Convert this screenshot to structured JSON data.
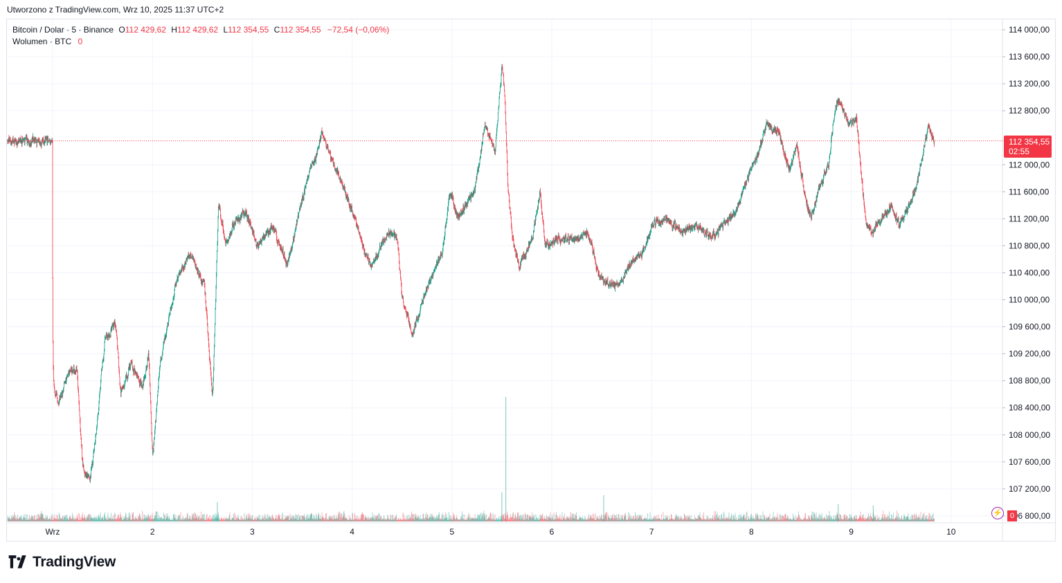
{
  "header": {
    "caption": "Utworzono z TradingView.com, Wrz 10, 2025 11:37 UTC+2"
  },
  "legend": {
    "symbol": "Bitcoin / Dolar · 5 · Binance",
    "open_key": "O",
    "open": "112 429,62",
    "high_key": "H",
    "high": "112 429,62",
    "low_key": "L",
    "low": "112 354,55",
    "close_key": "C",
    "close": "112 354,55",
    "change": "−72,54 (−0,06%)",
    "volume_label": "Wolumen · BTC",
    "volume_value": "0"
  },
  "price_label": {
    "price": "112 354,55",
    "countdown": "02:55"
  },
  "volume_badge": "0",
  "brand": {
    "name": "TradingView"
  },
  "colors": {
    "up": "#089981",
    "down": "#f23645",
    "grid": "#f0f3fa",
    "text": "#131722",
    "last_price_line": "#f23645"
  },
  "icons": {
    "alert": "lightning-icon",
    "logo": "tradingview-logo-icon"
  },
  "chart_data": {
    "type": "candlestick",
    "title": "Bitcoin / Dolar · 5 · Binance",
    "y_ticks": [
      "114 000,00",
      "113 600,00",
      "113 200,00",
      "112 800,00",
      "112 000,00",
      "111 600,00",
      "111 200,00",
      "110 800,00",
      "110 400,00",
      "110 000,00",
      "109 600,00",
      "109 200,00",
      "108 800,00",
      "108 400,00",
      "108 000,00",
      "107 600,00",
      "107 200,00",
      "106 800,00"
    ],
    "y_tick_values": [
      114000,
      113600,
      113200,
      112800,
      112000,
      111600,
      111200,
      110800,
      110400,
      110000,
      109600,
      109200,
      108800,
      108400,
      108000,
      107600,
      107200,
      106800
    ],
    "x_ticks": [
      "Wrz",
      "2",
      "3",
      "4",
      "5",
      "6",
      "7",
      "8",
      "9",
      "10"
    ],
    "ylim": [
      106800,
      114000
    ],
    "last_price": 112354.55,
    "grid": true,
    "price_path": [
      [
        0,
        108700
      ],
      [
        0.06,
        108450
      ],
      [
        0.15,
        108900
      ],
      [
        0.24,
        109000
      ],
      [
        0.3,
        107500
      ],
      [
        0.37,
        107300
      ],
      [
        0.43,
        108000
      ],
      [
        0.52,
        109400
      ],
      [
        0.63,
        109650
      ],
      [
        0.68,
        108600
      ],
      [
        0.78,
        109050
      ],
      [
        0.9,
        108700
      ],
      [
        0.96,
        109200
      ],
      [
        1.0,
        107600
      ],
      [
        1.07,
        109000
      ],
      [
        1.16,
        109700
      ],
      [
        1.24,
        110300
      ],
      [
        1.38,
        110700
      ],
      [
        1.52,
        110200
      ],
      [
        1.6,
        108500
      ],
      [
        1.66,
        111500
      ],
      [
        1.73,
        110800
      ],
      [
        1.8,
        111100
      ],
      [
        1.93,
        111300
      ],
      [
        2.05,
        110800
      ],
      [
        2.2,
        111100
      ],
      [
        2.35,
        110500
      ],
      [
        2.45,
        111200
      ],
      [
        2.55,
        111800
      ],
      [
        2.65,
        112200
      ],
      [
        2.7,
        112500
      ],
      [
        2.76,
        112200
      ],
      [
        2.9,
        111700
      ],
      [
        3.03,
        111200
      ],
      [
        3.12,
        110700
      ],
      [
        3.2,
        110500
      ],
      [
        3.35,
        111000
      ],
      [
        3.45,
        110900
      ],
      [
        3.5,
        110000
      ],
      [
        3.6,
        109500
      ],
      [
        3.75,
        110200
      ],
      [
        3.9,
        110700
      ],
      [
        3.98,
        111600
      ],
      [
        4.05,
        111200
      ],
      [
        4.22,
        111600
      ],
      [
        4.33,
        112600
      ],
      [
        4.43,
        112200
      ],
      [
        4.5,
        113500
      ],
      [
        4.53,
        112900
      ],
      [
        4.56,
        111600
      ],
      [
        4.6,
        111000
      ],
      [
        4.67,
        110500
      ],
      [
        4.8,
        110900
      ],
      [
        4.88,
        111600
      ],
      [
        4.93,
        110800
      ],
      [
        5.07,
        110900
      ],
      [
        5.25,
        110900
      ],
      [
        5.35,
        111000
      ],
      [
        5.4,
        110800
      ],
      [
        5.48,
        110300
      ],
      [
        5.65,
        110200
      ],
      [
        5.82,
        110600
      ],
      [
        5.92,
        110700
      ],
      [
        6.0,
        111100
      ],
      [
        6.15,
        111200
      ],
      [
        6.3,
        111000
      ],
      [
        6.45,
        111100
      ],
      [
        6.6,
        110900
      ],
      [
        6.7,
        111100
      ],
      [
        6.85,
        111300
      ],
      [
        6.95,
        111800
      ],
      [
        7.05,
        112100
      ],
      [
        7.15,
        112600
      ],
      [
        7.27,
        112500
      ],
      [
        7.38,
        111900
      ],
      [
        7.45,
        112300
      ],
      [
        7.55,
        111400
      ],
      [
        7.6,
        111200
      ],
      [
        7.68,
        111700
      ],
      [
        7.77,
        112000
      ],
      [
        7.82,
        112700
      ],
      [
        7.87,
        113000
      ],
      [
        7.92,
        112800
      ],
      [
        7.98,
        112600
      ],
      [
        8.05,
        112700
      ],
      [
        8.1,
        111800
      ],
      [
        8.15,
        111100
      ],
      [
        8.2,
        111000
      ],
      [
        8.3,
        111200
      ],
      [
        8.4,
        111400
      ],
      [
        8.48,
        111100
      ],
      [
        8.58,
        111400
      ],
      [
        8.65,
        111700
      ],
      [
        8.72,
        112200
      ],
      [
        8.77,
        112600
      ],
      [
        8.82,
        112350
      ]
    ],
    "volume_spikes": [
      [
        4.54,
        1800
      ],
      [
        4.5,
        420
      ],
      [
        5.52,
        380
      ],
      [
        1.65,
        280
      ],
      [
        7.87,
        250
      ],
      [
        8.22,
        230
      ]
    ]
  }
}
